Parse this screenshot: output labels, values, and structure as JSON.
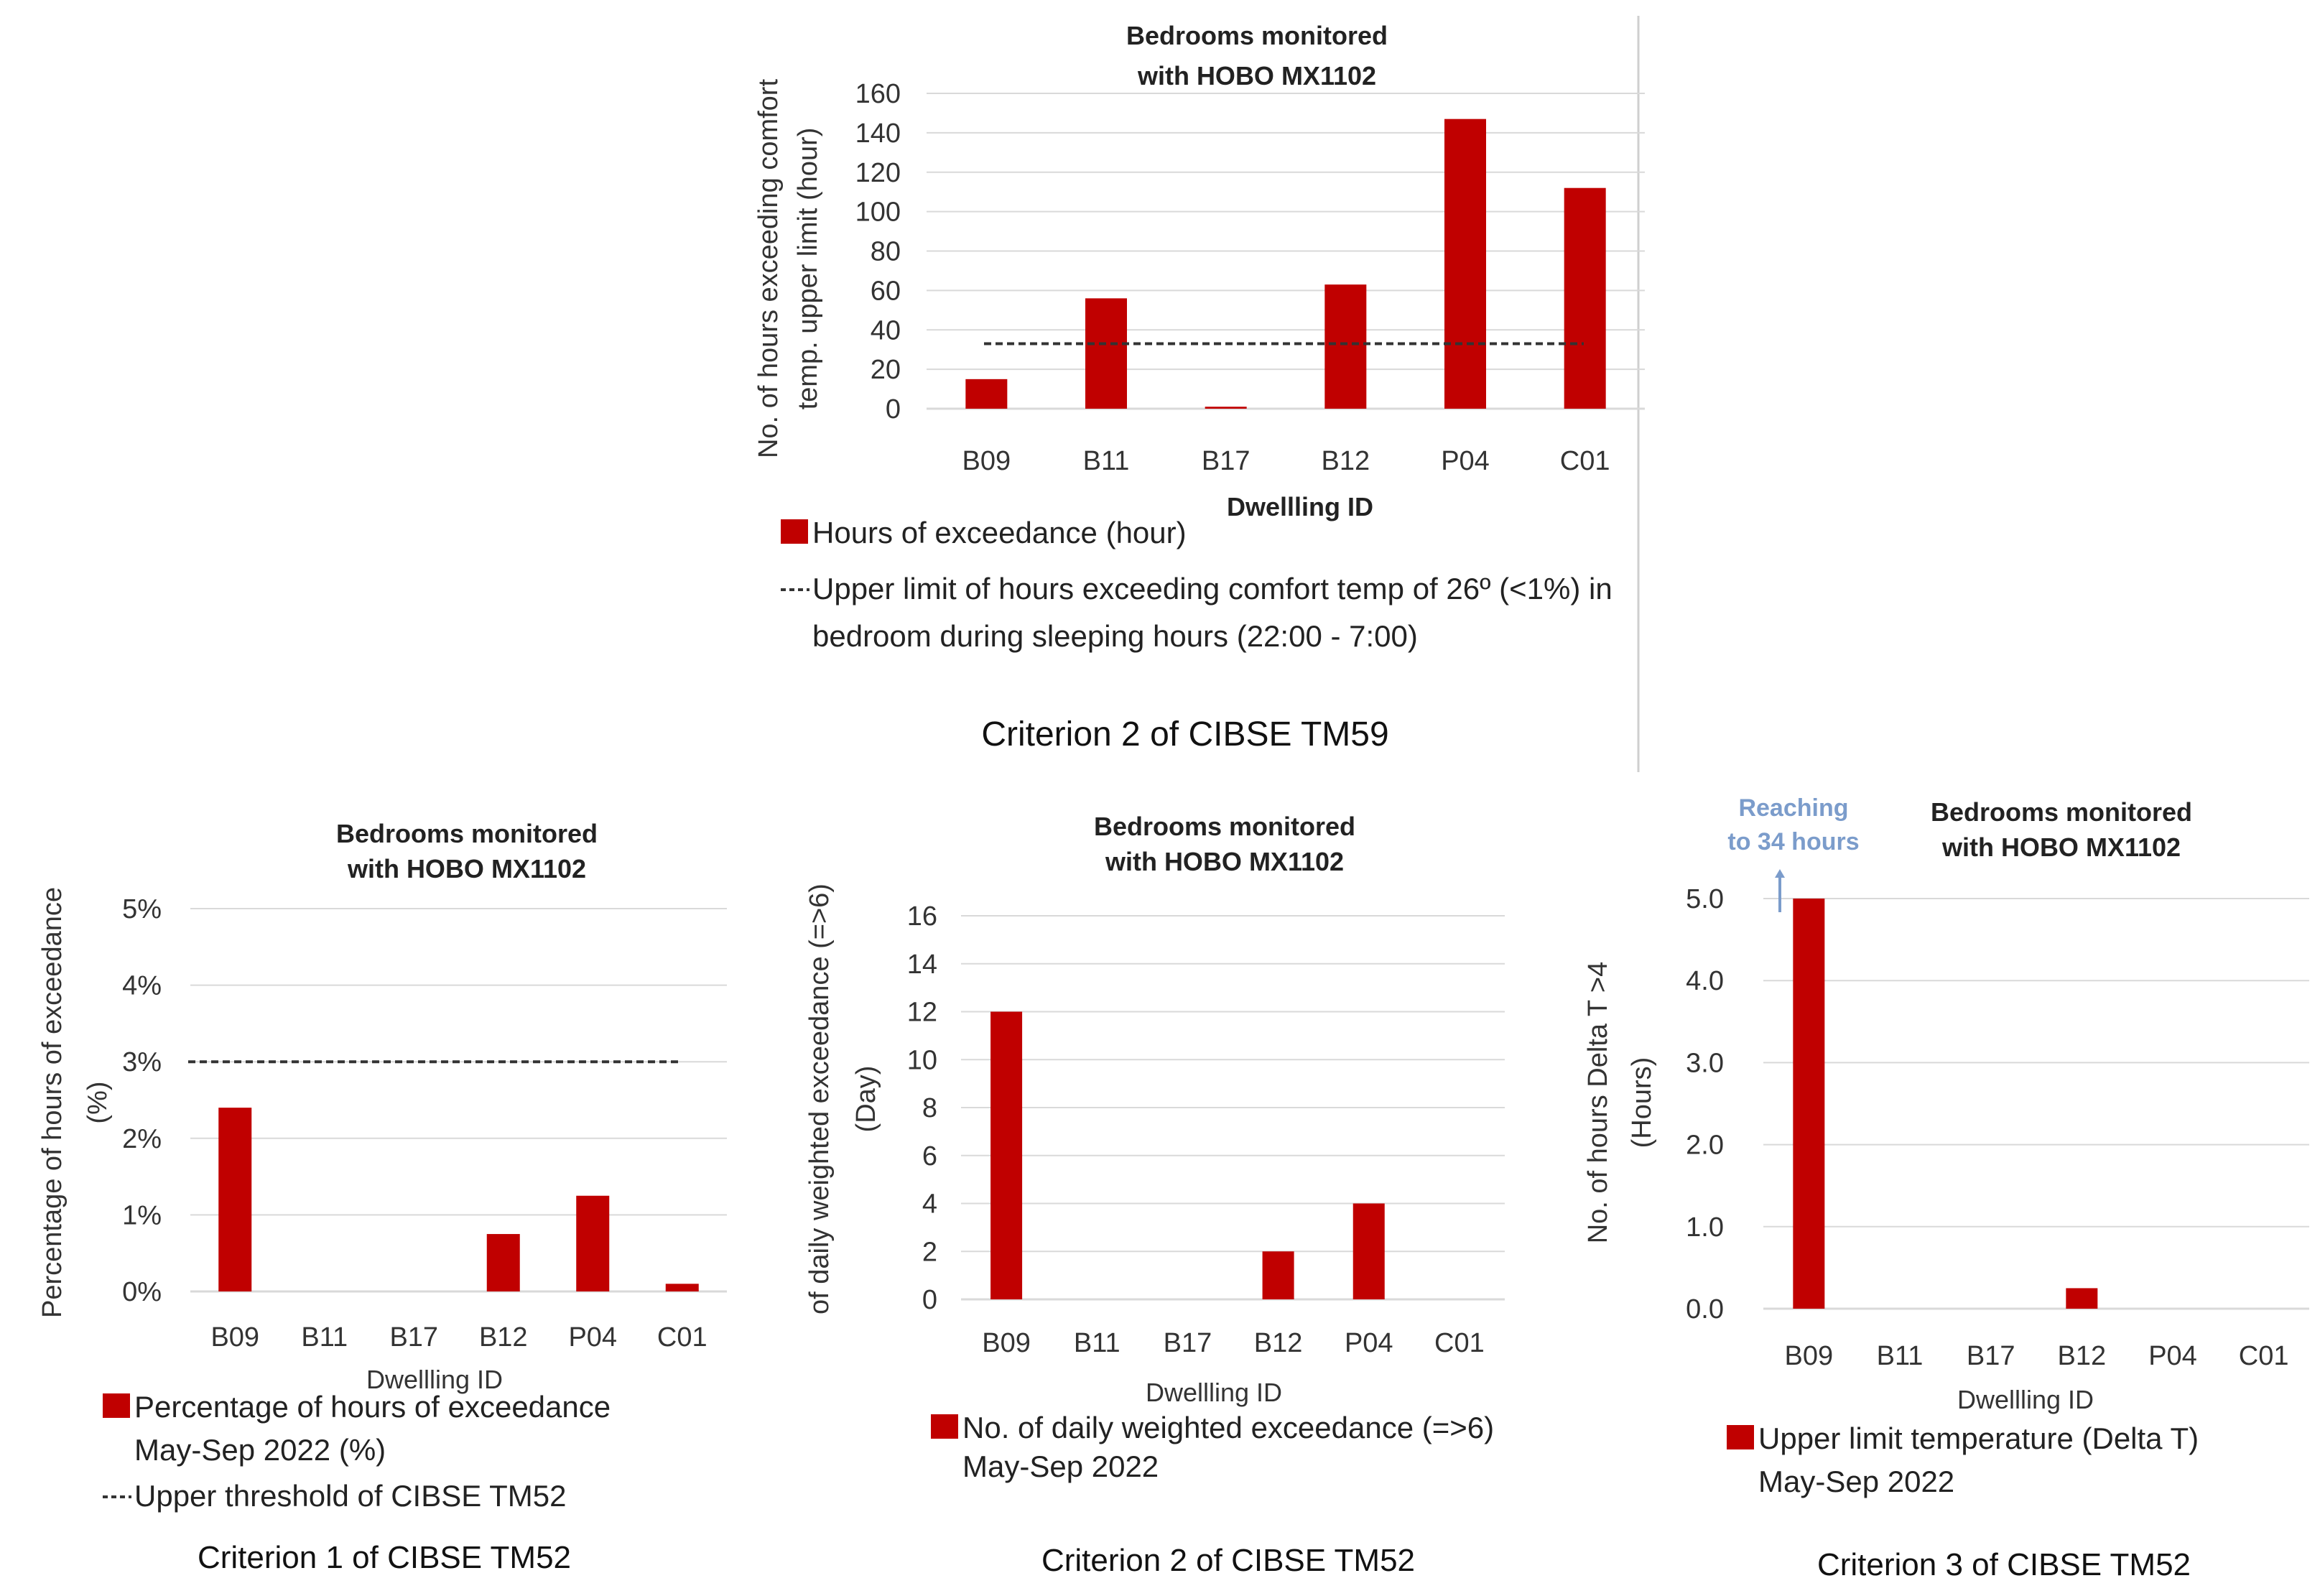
{
  "colors": {
    "bar": "#c00000",
    "grid": "#d9d9d9",
    "threshold": "#333333",
    "annotation": "#7b9ccb"
  },
  "chart_data": [
    {
      "id": "top",
      "type": "bar",
      "title_lines": [
        "Bedrooms monitored",
        "with HOBO MX1102"
      ],
      "xlabel": "Dwellling ID",
      "ylabel_lines": [
        "No. of hours exceeding comfort",
        "temp. upper limit (hour)"
      ],
      "categories": [
        "B09",
        "B11",
        "B17",
        "B12",
        "P04",
        "C01"
      ],
      "values": [
        15,
        56,
        1,
        63,
        147,
        112
      ],
      "ylim": [
        0,
        160
      ],
      "yticks": [
        "0",
        "20",
        "40",
        "60",
        "80",
        "100",
        "120",
        "140",
        "160"
      ],
      "threshold": 33,
      "legend_bar_lines": [
        "Hours of exceedance (hour)"
      ],
      "legend_line_lines": [
        "Upper limit of hours exceeding comfort temp of 26º (<1%) in",
        "bedroom during sleeping hours (22:00 - 7:00)"
      ],
      "caption": "Criterion 2 of CIBSE TM59"
    },
    {
      "id": "c1",
      "type": "bar",
      "title_lines": [
        "Bedrooms monitored",
        "with HOBO MX1102"
      ],
      "xlabel": "Dwellling ID",
      "ylabel_lines": [
        "Percentage of hours of exceedance",
        "(%)"
      ],
      "categories": [
        "B09",
        "B11",
        "B17",
        "B12",
        "P04",
        "C01"
      ],
      "values": [
        2.4,
        0,
        0,
        0.75,
        1.25,
        0.1
      ],
      "ylim": [
        0,
        5
      ],
      "yticks": [
        "0%",
        "1%",
        "2%",
        "3%",
        "4%",
        "5%"
      ],
      "threshold": 3,
      "legend_bar_lines": [
        "Percentage of hours of exceedance",
        "May-Sep 2022 (%)"
      ],
      "legend_line_lines": [
        "Upper threshold of CIBSE TM52"
      ],
      "caption": "Criterion 1 of CIBSE TM52"
    },
    {
      "id": "c2",
      "type": "bar",
      "title_lines": [
        "Bedrooms monitored",
        "with HOBO MX1102"
      ],
      "xlabel": "Dwellling ID",
      "ylabel_lines": [
        "of daily weighted exceedance (=>6)",
        "(Day)"
      ],
      "categories": [
        "B09",
        "B11",
        "B17",
        "B12",
        "P04",
        "C01"
      ],
      "values": [
        12,
        0,
        0,
        2,
        4,
        0
      ],
      "ylim": [
        0,
        16
      ],
      "yticks": [
        "0",
        "2",
        "4",
        "6",
        "8",
        "10",
        "12",
        "14",
        "16"
      ],
      "legend_bar_lines": [
        "No. of daily weighted exceedance (=>6)",
        "May-Sep 2022"
      ],
      "caption": "Criterion 2 of CIBSE TM52"
    },
    {
      "id": "c3",
      "type": "bar",
      "title_lines": [
        "Bedrooms monitored",
        "with HOBO MX1102"
      ],
      "xlabel": "Dwellling ID",
      "ylabel_lines": [
        "No. of hours Delta T >4",
        "(Hours)"
      ],
      "categories": [
        "B09",
        "B11",
        "B17",
        "B12",
        "P04",
        "C01"
      ],
      "values": [
        5.0,
        0,
        0,
        0.25,
        0,
        0
      ],
      "ylim": [
        0,
        5
      ],
      "yticks": [
        "0.0",
        "1.0",
        "2.0",
        "3.0",
        "4.0",
        "5.0"
      ],
      "annotation_lines": [
        "Reaching",
        "to 34 hours"
      ],
      "legend_bar_lines": [
        "Upper limit temperature (Delta T)",
        "May-Sep 2022"
      ],
      "caption": "Criterion 3 of CIBSE TM52"
    }
  ]
}
